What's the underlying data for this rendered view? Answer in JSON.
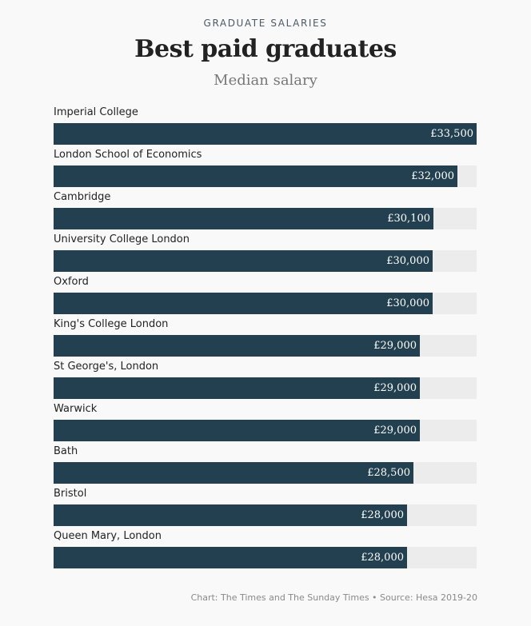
{
  "chart_data": {
    "type": "bar",
    "orientation": "horizontal",
    "kicker": "GRADUATE SALARIES",
    "title": "Best paid graduates",
    "subtitle": "Median salary",
    "categories": [
      "Imperial College",
      "London School of Economics",
      "Cambridge",
      "University College London",
      "Oxford",
      "King's College London",
      "St George's, London",
      "Warwick",
      "Bath",
      "Bristol",
      "Queen Mary, London"
    ],
    "values": [
      33500,
      32000,
      30100,
      30000,
      30000,
      29000,
      29000,
      29000,
      28500,
      28000,
      28000
    ],
    "value_labels": [
      "£33,500",
      "£32,000",
      "£30,100",
      "£30,000",
      "£30,000",
      "£29,000",
      "£29,000",
      "£29,000",
      "£28,500",
      "£28,000",
      "£28,000"
    ],
    "xlim": [
      0,
      33500
    ],
    "bar_color": "#22404f",
    "track_color": "#ececec",
    "source": "Chart: The Times and The Sunday Times • Source: Hesa 2019-20"
  }
}
